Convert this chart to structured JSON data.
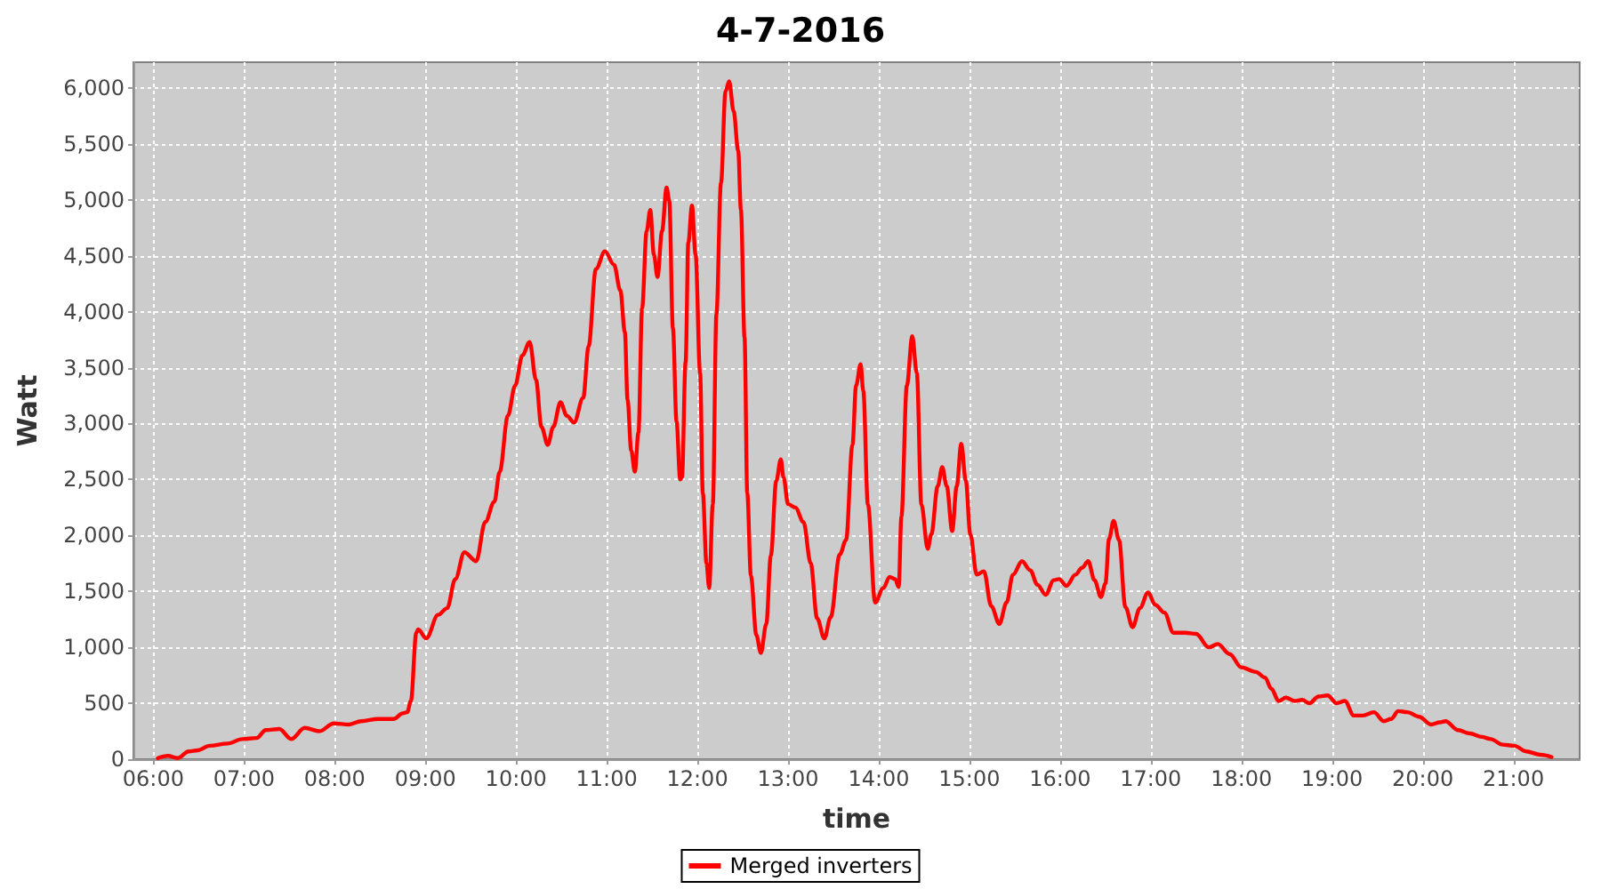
{
  "chart_data": {
    "type": "line",
    "title": "4-7-2016",
    "xlabel": "time",
    "ylabel": "Watt",
    "x": [
      6.05,
      6.16,
      6.27,
      6.39,
      6.49,
      6.62,
      6.82,
      6.98,
      7.14,
      7.24,
      7.39,
      7.52,
      7.67,
      7.83,
      7.99,
      8.16,
      8.29,
      8.48,
      8.65,
      8.75,
      8.8,
      8.84,
      8.9,
      8.92,
      9.01,
      9.14,
      9.24,
      9.33,
      9.43,
      9.56,
      9.66,
      9.76,
      9.82,
      9.91,
      9.99,
      10.07,
      10.15,
      10.22,
      10.28,
      10.35,
      10.41,
      10.49,
      10.56,
      10.64,
      10.74,
      10.8,
      10.88,
      10.98,
      11.08,
      11.15,
      11.2,
      11.23,
      11.27,
      11.31,
      11.35,
      11.39,
      11.44,
      11.48,
      11.52,
      11.56,
      11.61,
      11.66,
      11.69,
      11.73,
      11.77,
      11.81,
      11.83,
      11.87,
      11.9,
      11.94,
      11.98,
      12.03,
      12.06,
      12.1,
      12.13,
      12.17,
      12.21,
      12.26,
      12.31,
      12.35,
      12.4,
      12.45,
      12.48,
      12.52,
      12.55,
      12.59,
      12.65,
      12.7,
      12.76,
      12.81,
      12.87,
      12.92,
      12.95,
      13.0,
      13.08,
      13.17,
      13.25,
      13.32,
      13.4,
      13.47,
      13.57,
      13.64,
      13.71,
      13.75,
      13.8,
      13.83,
      13.88,
      13.96,
      14.05,
      14.12,
      14.18,
      14.22,
      14.25,
      14.31,
      14.37,
      14.42,
      14.47,
      14.54,
      14.58,
      14.65,
      14.7,
      14.75,
      14.81,
      14.86,
      14.91,
      14.96,
      15.01,
      15.08,
      15.16,
      15.24,
      15.33,
      15.41,
      15.48,
      15.58,
      15.67,
      15.75,
      15.84,
      15.93,
      15.99,
      16.07,
      16.17,
      16.24,
      16.31,
      16.38,
      16.45,
      16.5,
      16.54,
      16.59,
      16.65,
      16.72,
      16.8,
      16.88,
      16.97,
      17.05,
      17.15,
      17.25,
      17.38,
      17.5,
      17.64,
      17.74,
      17.87,
      18.0,
      18.16,
      18.26,
      18.33,
      18.41,
      18.49,
      18.59,
      18.67,
      18.75,
      18.85,
      18.95,
      19.05,
      19.14,
      19.24,
      19.34,
      19.46,
      19.57,
      19.65,
      19.73,
      19.83,
      19.96,
      20.09,
      20.19,
      20.25,
      20.39,
      20.52,
      20.65,
      20.75,
      20.88,
      21.01,
      21.14,
      21.3,
      21.42
    ],
    "series": [
      {
        "name": "Merged inverters",
        "color": "#ff0000",
        "values": [
          10,
          30,
          10,
          70,
          80,
          120,
          140,
          180,
          190,
          260,
          270,
          180,
          280,
          250,
          320,
          310,
          340,
          360,
          360,
          410,
          420,
          520,
          1130,
          1160,
          1080,
          1290,
          1350,
          1610,
          1850,
          1770,
          2120,
          2300,
          2570,
          3070,
          3340,
          3610,
          3730,
          3390,
          2970,
          2810,
          2970,
          3190,
          3070,
          3010,
          3230,
          3690,
          4380,
          4540,
          4420,
          4190,
          3820,
          3210,
          2760,
          2570,
          2920,
          4030,
          4720,
          4910,
          4510,
          4310,
          4720,
          5110,
          4990,
          3850,
          3020,
          2500,
          2520,
          3550,
          4620,
          4950,
          4510,
          3450,
          2380,
          1750,
          1530,
          2280,
          3980,
          5150,
          5970,
          6060,
          5790,
          5440,
          4910,
          3770,
          2380,
          1640,
          1110,
          950,
          1210,
          1820,
          2490,
          2680,
          2520,
          2280,
          2250,
          2120,
          1750,
          1260,
          1080,
          1270,
          1830,
          1960,
          2810,
          3340,
          3530,
          3290,
          2280,
          1400,
          1530,
          1630,
          1610,
          1540,
          2170,
          3340,
          3780,
          3450,
          2280,
          1880,
          2010,
          2440,
          2610,
          2440,
          2040,
          2440,
          2820,
          2490,
          2010,
          1650,
          1680,
          1370,
          1210,
          1400,
          1650,
          1770,
          1690,
          1560,
          1470,
          1600,
          1610,
          1550,
          1650,
          1710,
          1770,
          1600,
          1450,
          1570,
          1970,
          2130,
          1960,
          1360,
          1180,
          1350,
          1490,
          1380,
          1310,
          1130,
          1130,
          1120,
          1000,
          1030,
          940,
          820,
          780,
          730,
          630,
          520,
          550,
          520,
          530,
          500,
          560,
          570,
          500,
          520,
          390,
          390,
          420,
          340,
          360,
          430,
          420,
          380,
          310,
          330,
          340,
          260,
          230,
          200,
          180,
          130,
          120,
          70,
          40,
          20
        ]
      }
    ],
    "xlim": [
      5.78,
      21.73
    ],
    "xticks": [
      {
        "value": 6,
        "label": "06:00"
      },
      {
        "value": 7,
        "label": "07:00"
      },
      {
        "value": 8,
        "label": "08:00"
      },
      {
        "value": 9,
        "label": "09:00"
      },
      {
        "value": 10,
        "label": "10:00"
      },
      {
        "value": 11,
        "label": "11:00"
      },
      {
        "value": 12,
        "label": "12:00"
      },
      {
        "value": 13,
        "label": "13:00"
      },
      {
        "value": 14,
        "label": "14:00"
      },
      {
        "value": 15,
        "label": "15:00"
      },
      {
        "value": 16,
        "label": "16:00"
      },
      {
        "value": 17,
        "label": "17:00"
      },
      {
        "value": 18,
        "label": "18:00"
      },
      {
        "value": 19,
        "label": "19:00"
      },
      {
        "value": 20,
        "label": "20:00"
      },
      {
        "value": 21,
        "label": "21:00"
      }
    ],
    "ylim": [
      0,
      6230
    ],
    "yticks": [
      0,
      500,
      {
        "value": 1000,
        "label": "1,000"
      },
      {
        "value": 1500,
        "label": "1,500"
      },
      {
        "value": 2000,
        "label": "2,000"
      },
      {
        "value": 2500,
        "label": "2,500"
      },
      {
        "value": 3000,
        "label": "3,000"
      },
      {
        "value": 3500,
        "label": "3,500"
      },
      {
        "value": 4000,
        "label": "4,000"
      },
      {
        "value": 4500,
        "label": "4,500"
      },
      {
        "value": 5000,
        "label": "5,000"
      },
      {
        "value": 5500,
        "label": "5,500"
      },
      {
        "value": 6000,
        "label": "6,000"
      }
    ],
    "grid": true,
    "legend": "bottom"
  }
}
